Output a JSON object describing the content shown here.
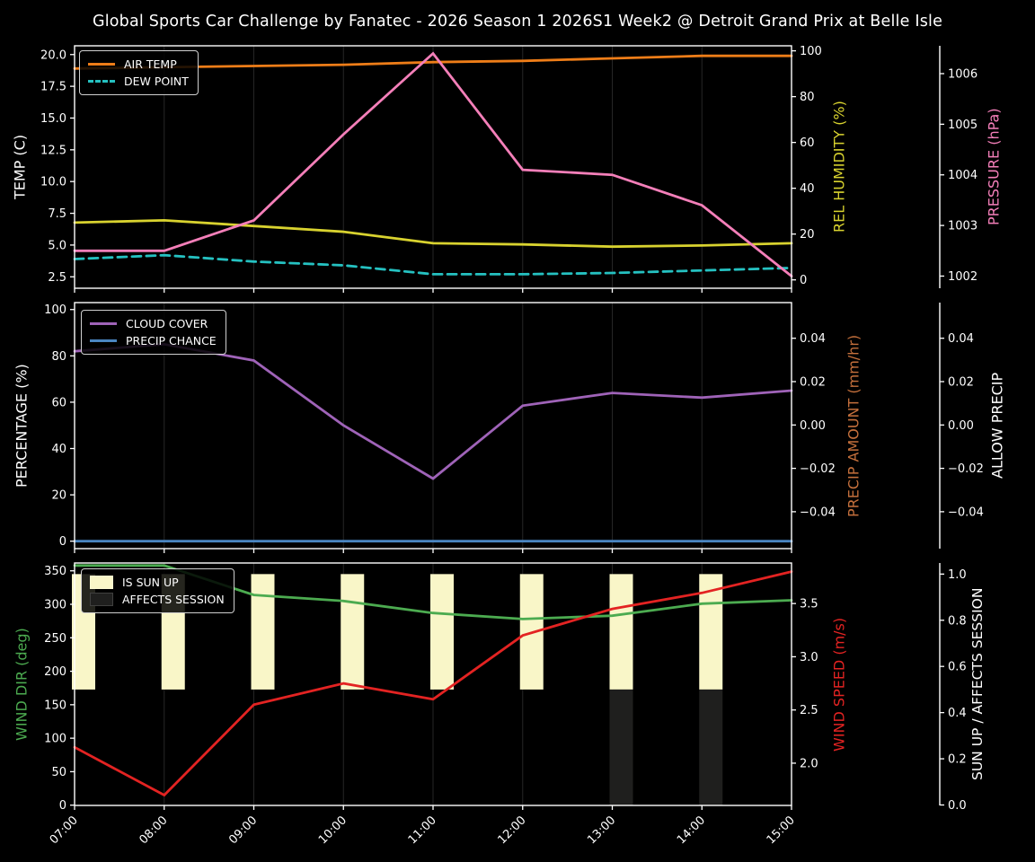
{
  "title": "Global Sports Car Challenge by Fanatec - 2026 Season 1 2026S1 Week2 @ Detroit Grand Prix at Belle Isle",
  "palette": {
    "background": "#000000",
    "foreground": "#ffffff",
    "grid": "#262626"
  },
  "x_labels": [
    "07:00",
    "08:00",
    "09:00",
    "10:00",
    "11:00",
    "12:00",
    "13:00",
    "14:00",
    "15:00"
  ],
  "chart_data": [
    {
      "type": "line",
      "x": [
        "07:00",
        "08:00",
        "09:00",
        "10:00",
        "11:00",
        "12:00",
        "13:00",
        "14:00",
        "15:00"
      ],
      "axes": {
        "left": {
          "label": "TEMP (C)",
          "color": "#ffffff",
          "min": 1.6,
          "max": 20.69,
          "ticks": [
            2.5,
            5.0,
            7.5,
            10.0,
            12.5,
            15.0,
            17.5,
            20.0
          ],
          "decimals": 1
        },
        "right_attached": {
          "label": "REL HUMIDITY (%)",
          "color": "#d8d22f",
          "min": -3.65,
          "max": 102.2,
          "ticks": [
            0,
            20,
            40,
            60,
            80,
            100
          ],
          "decimals": 0
        },
        "right_detached": {
          "label": "PRESSURE (hPa)",
          "color": "#f47fb9",
          "min": 1001.76,
          "max": 1006.55,
          "ticks": [
            1002,
            1003,
            1004,
            1005,
            1006
          ],
          "decimals": 0
        }
      },
      "series": [
        {
          "name": "AIR TEMP",
          "axis": "left",
          "color": "#ee7d18",
          "style": "solid",
          "values": [
            18.9,
            19.0,
            19.1,
            19.2,
            19.4,
            19.5,
            19.7,
            19.9,
            19.9
          ]
        },
        {
          "name": "DEW POINT",
          "axis": "left",
          "color": "#25c1c1",
          "style": "dashed",
          "values": [
            3.9,
            4.2,
            3.7,
            3.4,
            2.7,
            2.7,
            2.8,
            3.0,
            3.2
          ]
        },
        {
          "name": "REL HUMIDITY",
          "axis": "right_attached",
          "color": "#d8d22f",
          "style": "solid",
          "values": [
            25,
            26,
            23.5,
            21,
            16,
            15.5,
            14.5,
            15,
            16
          ]
        },
        {
          "name": "PRESSURE",
          "axis": "right_detached",
          "color": "#f47fb9",
          "style": "solid",
          "values": [
            1002.5,
            1002.5,
            1003.1,
            1004.8,
            1006.4,
            1004.1,
            1004.0,
            1003.4,
            1002.0
          ]
        }
      ],
      "legend": [
        "AIR TEMP",
        "DEW POINT"
      ]
    },
    {
      "type": "line",
      "x": [
        "07:00",
        "08:00",
        "09:00",
        "10:00",
        "11:00",
        "12:00",
        "13:00",
        "14:00",
        "15:00"
      ],
      "axes": {
        "left": {
          "label": "PERCENTAGE (%)",
          "color": "#ffffff",
          "min": -3.22,
          "max": 103.0,
          "ticks": [
            0,
            20,
            40,
            60,
            80,
            100
          ],
          "decimals": 0
        },
        "right_attached": {
          "label": "PRECIP AMOUNT (mm/hr)",
          "color": "#c5703c",
          "min": -0.05702,
          "max": 0.05644,
          "ticks": [
            0.04,
            0.02,
            0.0,
            -0.02,
            -0.04
          ],
          "decimals": 2
        },
        "right_detached": {
          "label": "ALLOW PRECIP",
          "color": "#ffffff",
          "min": -0.05702,
          "max": 0.05644,
          "ticks": [
            0.04,
            0.02,
            0.0,
            -0.02,
            -0.04
          ],
          "decimals": 2
        }
      },
      "series": [
        {
          "name": "CLOUD COVER",
          "axis": "left",
          "color": "#9f63b8",
          "style": "solid",
          "values": [
            82,
            85,
            78,
            50,
            27,
            58.5,
            64,
            62,
            65
          ]
        },
        {
          "name": "PRECIP CHANCE",
          "axis": "left",
          "color": "#4a86c2",
          "style": "solid",
          "values": [
            0,
            0,
            0,
            0,
            0,
            0,
            0,
            0,
            0
          ]
        }
      ],
      "legend": [
        "CLOUD COVER",
        "PRECIP CHANCE"
      ]
    },
    {
      "type": "line-bar",
      "x": [
        "07:00",
        "08:00",
        "09:00",
        "10:00",
        "11:00",
        "12:00",
        "13:00",
        "14:00",
        "15:00"
      ],
      "axes": {
        "left": {
          "label": "WIND DIR (deg)",
          "color": "#4cab50",
          "min": -0.4,
          "max": 361.7,
          "ticks": [
            0,
            50,
            100,
            150,
            200,
            250,
            300,
            350
          ],
          "decimals": 0
        },
        "right_attached": {
          "label": "WIND SPEED (m/s)",
          "color": "#e32322",
          "min": 1.603,
          "max": 3.881,
          "ticks": [
            2.0,
            2.5,
            3.0,
            3.5
          ],
          "decimals": 1
        },
        "right_detached": {
          "label": "SUN UP / AFFECTS SESSION",
          "color": "#ffffff",
          "min": -0.002,
          "max": 1.048,
          "ticks": [
            0.0,
            0.2,
            0.4,
            0.6,
            0.8,
            1.0
          ],
          "decimals": 1
        }
      },
      "bars": [
        {
          "name": "IS SUN UP",
          "axis": "right_detached",
          "color": "#f9f6c8",
          "bottom": 0.5,
          "top": 1.0,
          "values": [
            1,
            1,
            1,
            1,
            1,
            1,
            1,
            1,
            0
          ]
        },
        {
          "name": "AFFECTS SESSION",
          "axis": "right_detached",
          "color": "#1f1f1e",
          "bottom": 0.0,
          "top": 0.5,
          "values": [
            0,
            0,
            0,
            0,
            0,
            0,
            1,
            1,
            0
          ]
        }
      ],
      "series": [
        {
          "name": "WIND DIR",
          "axis": "left",
          "color": "#4cab50",
          "style": "solid",
          "values": [
            358,
            358,
            314,
            305,
            287,
            278,
            283,
            301,
            306
          ]
        },
        {
          "name": "WIND SPEED",
          "axis": "right_attached",
          "color": "#e32322",
          "style": "solid",
          "values": [
            2.15,
            1.7,
            2.55,
            2.75,
            2.6,
            3.2,
            3.45,
            3.6,
            3.8
          ]
        }
      ],
      "legend": [
        "IS SUN UP",
        "AFFECTS SESSION"
      ]
    }
  ]
}
